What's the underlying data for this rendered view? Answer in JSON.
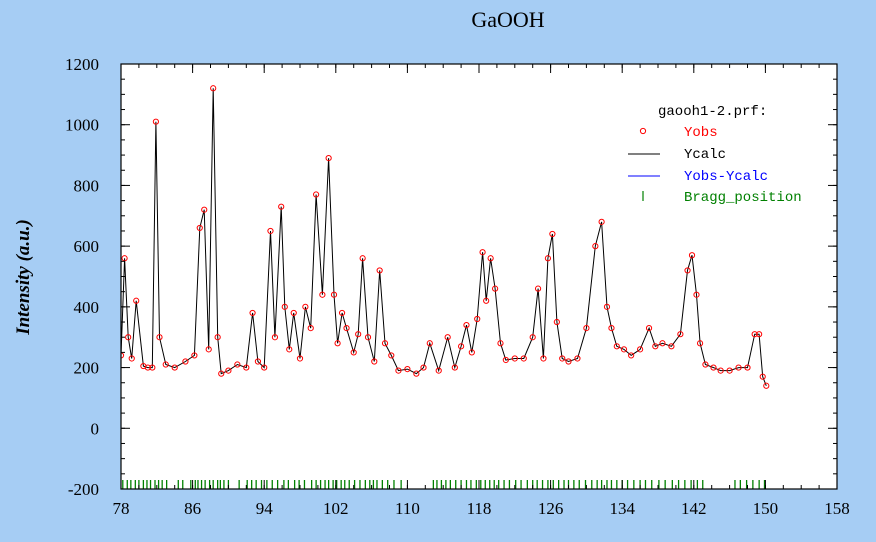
{
  "colors": {
    "background": "#a6cdf4",
    "plot_bg": "#ffffff",
    "obs": "#ff0000",
    "calc": "#000000",
    "diff": "#0000ff",
    "bragg": "#008000"
  },
  "chart_data": {
    "type": "scatter",
    "title": "GaOOH",
    "ylabel": "Intensity (a.u.)",
    "xlabel": "",
    "xlim": [
      78,
      158
    ],
    "ylim": [
      -200,
      1200
    ],
    "x_ticks": [
      "78",
      "86",
      "94",
      "102",
      "110",
      "118",
      "126",
      "134",
      "142",
      "150",
      "158"
    ],
    "y_ticks": [
      "-200",
      "0",
      "200",
      "400",
      "600",
      "800",
      "1000",
      "1200"
    ],
    "grid": false,
    "legend_title": "gaooh1-2.prf:",
    "legend_position": "top-right",
    "series": [
      {
        "name": "Yobs",
        "style": "circles",
        "color": "#ff0000",
        "x": [
          78.0,
          78.4,
          78.8,
          79.2,
          79.7,
          80.5,
          81.0,
          81.5,
          81.9,
          82.3,
          83.0,
          84.0,
          85.2,
          86.2,
          86.8,
          87.3,
          87.8,
          88.3,
          88.8,
          89.2,
          90.0,
          91.0,
          92.0,
          92.7,
          93.3,
          94.0,
          94.7,
          95.2,
          95.9,
          96.3,
          96.8,
          97.3,
          98.0,
          98.6,
          99.2,
          99.8,
          100.5,
          101.2,
          101.8,
          102.2,
          102.7,
          103.2,
          104.0,
          104.5,
          105.0,
          105.6,
          106.3,
          106.9,
          107.5,
          108.2,
          109.0,
          110.0,
          111.0,
          111.8,
          112.5,
          113.5,
          114.5,
          115.3,
          116.0,
          116.6,
          117.2,
          117.8,
          118.4,
          118.8,
          119.3,
          119.8,
          120.4,
          121.0,
          122.0,
          123.0,
          124.0,
          124.6,
          125.2,
          125.7,
          126.2,
          126.7,
          127.3,
          128.0,
          129.0,
          130.0,
          131.0,
          131.7,
          132.3,
          132.8,
          133.4,
          134.2,
          135.0,
          136.0,
          137.0,
          137.7,
          138.5,
          139.5,
          140.5,
          141.3,
          141.8,
          142.3,
          142.7,
          143.3,
          144.2,
          145.0,
          146.0,
          147.0,
          148.0,
          148.8,
          149.3,
          149.7,
          150.1
        ],
        "y": [
          240,
          560,
          300,
          230,
          420,
          205,
          200,
          200,
          1010,
          300,
          210,
          200,
          220,
          240,
          660,
          720,
          260,
          1120,
          300,
          180,
          190,
          210,
          200,
          380,
          220,
          200,
          650,
          300,
          730,
          400,
          260,
          380,
          230,
          400,
          330,
          770,
          440,
          890,
          440,
          280,
          380,
          330,
          250,
          310,
          560,
          300,
          220,
          520,
          280,
          240,
          190,
          195,
          180,
          200,
          280,
          190,
          300,
          200,
          270,
          340,
          250,
          360,
          580,
          420,
          560,
          460,
          280,
          225,
          230,
          230,
          300,
          460,
          230,
          560,
          640,
          350,
          230,
          220,
          230,
          330,
          600,
          680,
          400,
          330,
          270,
          260,
          240,
          260,
          330,
          270,
          280,
          270,
          310,
          520,
          570,
          440,
          280,
          210,
          200,
          190,
          190,
          200,
          200,
          310,
          310,
          170,
          140
        ]
      },
      {
        "name": "Ycalc",
        "style": "line",
        "color": "#000000"
      },
      {
        "name": "Yobs-Ycalc",
        "style": "line",
        "color": "#0000ff"
      },
      {
        "name": "Bragg_position",
        "style": "ticks",
        "color": "#008000",
        "x": [
          78.2,
          78.7,
          79.1,
          79.6,
          80.0,
          80.5,
          80.9,
          81.3,
          81.8,
          82.2,
          82.6,
          83.1,
          84.4,
          84.9,
          85.8,
          86.3,
          86.6,
          87.0,
          87.4,
          87.9,
          88.3,
          88.8,
          89.1,
          89.5,
          90.0,
          91.2,
          92.1,
          92.6,
          93.1,
          93.7,
          94.3,
          94.9,
          95.5,
          96.2,
          96.7,
          97.4,
          97.9,
          98.5,
          99.3,
          99.8,
          100.3,
          100.8,
          101.2,
          101.7,
          102.1,
          102.6,
          103.0,
          103.5,
          104.1,
          104.7,
          105.3,
          105.8,
          106.2,
          106.6,
          107.2,
          107.8,
          108.5,
          109.3,
          112.9,
          113.3,
          113.8,
          114.3,
          114.8,
          115.4,
          116.0,
          116.6,
          117.1,
          117.7,
          118.2,
          118.7,
          119.2,
          119.7,
          120.2,
          120.8,
          121.4,
          122.1,
          122.7,
          123.4,
          124.0,
          124.5,
          125.1,
          125.7,
          126.3,
          126.9,
          127.5,
          128.0,
          128.6,
          129.2,
          129.9,
          130.6,
          131.2,
          131.7,
          132.3,
          132.8,
          133.4,
          134.0,
          134.6,
          135.3,
          136.0,
          136.6,
          137.3,
          138.1,
          138.8,
          139.6,
          140.3,
          141.0,
          141.7,
          142.4,
          143.0,
          146.6,
          147.2,
          147.9,
          148.6,
          149.3,
          149.9
        ]
      }
    ]
  }
}
